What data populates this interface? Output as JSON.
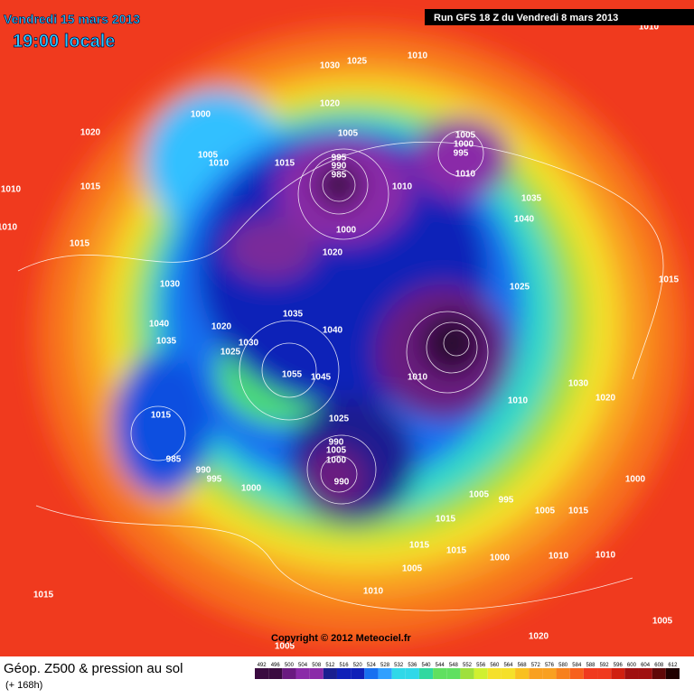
{
  "header": {
    "date": "Vendredi 15 mars 2013",
    "time": "19:00 locale",
    "run": "Run GFS 18 Z du Vendredi 8 mars 2013"
  },
  "footer": {
    "title": "Géop. Z500 & pression au sol",
    "subtitle": "(+ 168h)",
    "copyright": "Copyright © 2012 Meteociel.fr"
  },
  "colorbar": {
    "ticks": [
      492,
      496,
      500,
      504,
      508,
      512,
      516,
      520,
      524,
      528,
      532,
      536,
      540,
      544,
      548,
      552,
      556,
      560,
      564,
      568,
      572,
      576,
      580,
      584,
      588,
      592,
      596,
      600,
      604,
      608,
      612
    ]
  },
  "isobars": [
    1010,
    1030,
    1025,
    1010,
    1020,
    1000,
    1020,
    1005,
    1005,
    1000,
    995,
    995,
    990,
    985,
    1015,
    1005,
    1010,
    1010,
    1015,
    1010,
    1035,
    1040,
    1000,
    1020,
    1015,
    1010,
    1030,
    1025,
    1035,
    1040,
    1020,
    1040,
    1035,
    1030,
    1025,
    1015,
    1055,
    1045,
    1010,
    1010,
    1030,
    1020,
    1025,
    1015,
    990,
    1005,
    1000,
    990,
    985,
    990,
    995,
    1000,
    1005,
    995,
    1000,
    1015,
    1005,
    1015,
    1015,
    1000,
    1005,
    1010,
    1010,
    1015,
    1010,
    1020,
    1005,
    1005,
    1010,
    1015
  ]
}
